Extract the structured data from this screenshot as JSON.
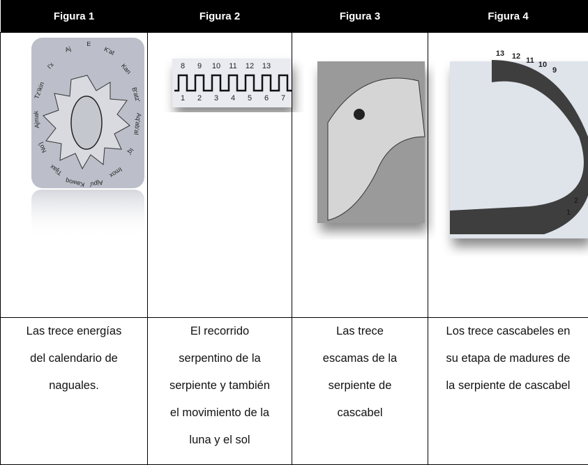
{
  "table": {
    "headers": [
      "Figura 1",
      "Figura 2",
      "Figura 3",
      "Figura 4"
    ],
    "captions": [
      [
        "Las trece energías",
        "del calendario de",
        "naguales."
      ],
      [
        "El recorrido",
        "serpentino de la",
        "serpiente y también",
        "el movimiento de la",
        "luna y el sol"
      ],
      [
        "Las trece",
        "escamas de la",
        "serpiente de",
        "cascabel"
      ],
      [
        "Los trece cascabeles en",
        "su etapa de madures de",
        "la serpiente de cascabel"
      ]
    ]
  },
  "figures": {
    "figure1_labels": [
      "K'at",
      "Kan",
      "B'atz'",
      "Aq'ab'al",
      "Iq'",
      "Imox",
      "Ajpu'",
      "Kawoq",
      "Tijax",
      "No'j",
      "Ajmak",
      "Tz'ikin",
      "I'x",
      "Aj",
      "E"
    ],
    "figure2_top": [
      "8",
      "9",
      "10",
      "11",
      "12",
      "13"
    ],
    "figure2_bottom": [
      "1",
      "2",
      "3",
      "4",
      "5",
      "6",
      "7"
    ],
    "figure4_labels": [
      "13",
      "12",
      "11",
      "10",
      "9",
      "2",
      "1"
    ]
  }
}
